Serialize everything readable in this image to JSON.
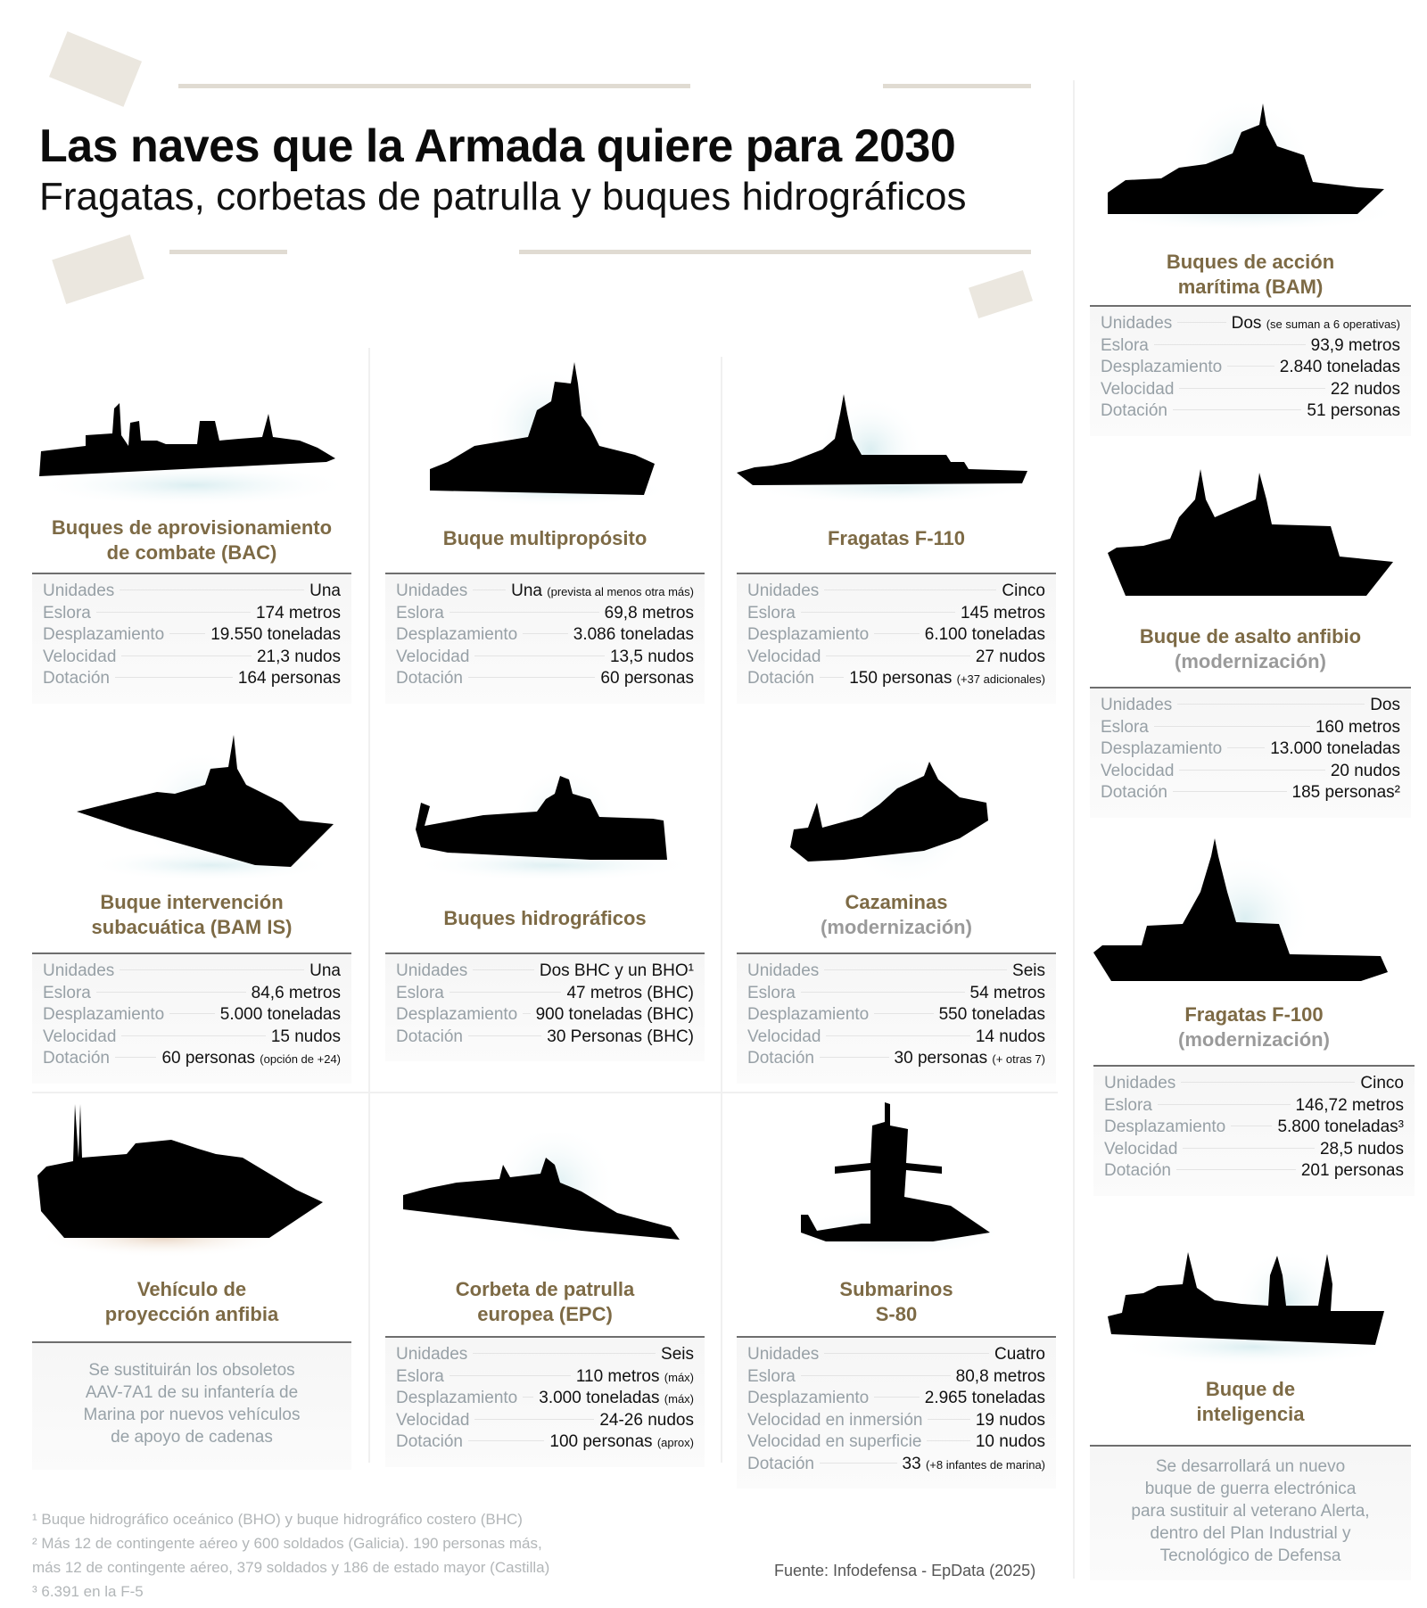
{
  "header": {
    "title": "Las naves que la Armada quiere para 2030",
    "subtitle": "Fragatas, corbetas de patrulla y buques hidrográficos"
  },
  "colors": {
    "name_accent": "#7d6a45",
    "label_gray": "#97a0a6",
    "silhouette": "#000000",
    "water_glow": "#cfe6ea",
    "deco_beige": "#ebe7df"
  },
  "cards": {
    "bac": {
      "name": "Buques de aprovisionamiento de combate (BAC)",
      "name_l1": "Buques de aprovisionamiento",
      "name_l2": "de combate (BAC)",
      "stats": [
        {
          "label": "Unidades",
          "value": "Una",
          "note": ""
        },
        {
          "label": "Eslora",
          "value": "174 metros",
          "note": ""
        },
        {
          "label": "Desplazamiento",
          "value": "19.550 toneladas",
          "note": ""
        },
        {
          "label": "Velocidad",
          "value": "21,3 nudos",
          "note": ""
        },
        {
          "label": "Dotación",
          "value": "164 personas",
          "note": ""
        }
      ]
    },
    "multi": {
      "name": "Buque multipropósito",
      "stats": [
        {
          "label": "Unidades",
          "value": "Una",
          "note": "(prevista al menos otra más)"
        },
        {
          "label": "Eslora",
          "value": "69,8 metros",
          "note": ""
        },
        {
          "label": "Desplazamiento",
          "value": "3.086 toneladas",
          "note": ""
        },
        {
          "label": "Velocidad",
          "value": "13,5 nudos",
          "note": ""
        },
        {
          "label": "Dotación",
          "value": "60 personas",
          "note": ""
        }
      ]
    },
    "f110": {
      "name": "Fragatas F-110",
      "stats": [
        {
          "label": "Unidades",
          "value": "Cinco",
          "note": ""
        },
        {
          "label": "Eslora",
          "value": "145 metros",
          "note": ""
        },
        {
          "label": "Desplazamiento",
          "value": "6.100 toneladas",
          "note": ""
        },
        {
          "label": "Velocidad",
          "value": "27 nudos",
          "note": ""
        },
        {
          "label": "Dotación",
          "value": "150 personas",
          "note": "(+37 adicionales)"
        }
      ]
    },
    "bam": {
      "name_l1": "Buques de acción",
      "name_l2": "marítima (BAM)",
      "stats": [
        {
          "label": "Unidades",
          "value": "Dos",
          "note": "(se suman a 6 operativas)"
        },
        {
          "label": "Eslora",
          "value": "93,9 metros",
          "note": ""
        },
        {
          "label": "Desplazamiento",
          "value": "2.840 toneladas",
          "note": ""
        },
        {
          "label": "Velocidad",
          "value": "22 nudos",
          "note": ""
        },
        {
          "label": "Dotación",
          "value": "51 personas",
          "note": ""
        }
      ]
    },
    "bamis": {
      "name_l1": "Buque intervención",
      "name_l2": "subacuática (BAM IS)",
      "stats": [
        {
          "label": "Unidades",
          "value": "Una",
          "note": ""
        },
        {
          "label": "Eslora",
          "value": "84,6 metros",
          "note": ""
        },
        {
          "label": "Desplazamiento",
          "value": "5.000 toneladas",
          "note": ""
        },
        {
          "label": "Velocidad",
          "value": "15 nudos",
          "note": ""
        },
        {
          "label": "Dotación",
          "value": "60 personas",
          "note": "(opción de +24)"
        }
      ]
    },
    "hidro": {
      "name": "Buques hidrográficos",
      "stats": [
        {
          "label": "Unidades",
          "value": "Dos BHC y un BHO¹",
          "note": ""
        },
        {
          "label": "Eslora",
          "value": "47 metros (BHC)",
          "note": ""
        },
        {
          "label": "Desplazamiento",
          "value": "900 toneladas (BHC)",
          "note": ""
        },
        {
          "label": "Dotación",
          "value": "30 Personas (BHC)",
          "note": ""
        }
      ]
    },
    "cazaminas": {
      "name_l1": "Cazaminas",
      "name_l2": "(modernización)",
      "stats": [
        {
          "label": "Unidades",
          "value": "Seis",
          "note": ""
        },
        {
          "label": "Eslora",
          "value": "54 metros",
          "note": ""
        },
        {
          "label": "Desplazamiento",
          "value": "550 toneladas",
          "note": ""
        },
        {
          "label": "Velocidad",
          "value": "14 nudos",
          "note": ""
        },
        {
          "label": "Dotación",
          "value": "30 personas",
          "note": "(+ otras 7)"
        }
      ]
    },
    "asalto": {
      "name_l1": "Buque de asalto anfibio",
      "name_l2": "(modernización)",
      "stats": [
        {
          "label": "Unidades",
          "value": "Dos",
          "note": ""
        },
        {
          "label": "Eslora",
          "value": "160 metros",
          "note": ""
        },
        {
          "label": "Desplazamiento",
          "value": "13.000 toneladas",
          "note": ""
        },
        {
          "label": "Velocidad",
          "value": "20 nudos",
          "note": ""
        },
        {
          "label": "Dotación",
          "value": "185 personas²",
          "note": ""
        }
      ]
    },
    "f100": {
      "name_l1": "Fragatas F-100",
      "name_l2": "(modernización)",
      "stats": [
        {
          "label": "Unidades",
          "value": "Cinco",
          "note": ""
        },
        {
          "label": "Eslora",
          "value": "146,72 metros",
          "note": ""
        },
        {
          "label": "Desplazamiento",
          "value": "5.800 toneladas³",
          "note": ""
        },
        {
          "label": "Velocidad",
          "value": "28,5 nudos",
          "note": ""
        },
        {
          "label": "Dotación",
          "value": "201 personas",
          "note": ""
        }
      ]
    },
    "vehiculo": {
      "name_l1": "Vehículo de",
      "name_l2": "proyección anfibia",
      "description": [
        "Se sustituirán los obsoletos",
        "AAV-7A1 de su infantería de",
        "Marina por nuevos vehículos",
        "de apoyo de cadenas"
      ]
    },
    "epc": {
      "name_l1": "Corbeta de patrulla",
      "name_l2": "europea (EPC)",
      "stats": [
        {
          "label": "Unidades",
          "value": "Seis",
          "note": ""
        },
        {
          "label": "Eslora",
          "value": "110 metros",
          "note": "(máx)"
        },
        {
          "label": "Desplazamiento",
          "value": "3.000 toneladas",
          "note": "(máx)"
        },
        {
          "label": "Velocidad",
          "value": "24-26 nudos",
          "note": ""
        },
        {
          "label": "Dotación",
          "value": "100 personas",
          "note": "(aprox)"
        }
      ]
    },
    "s80": {
      "name_l1": "Submarinos",
      "name_l2": "S-80",
      "stats": [
        {
          "label": "Unidades",
          "value": "Cuatro",
          "note": ""
        },
        {
          "label": "Eslora",
          "value": "80,8 metros",
          "note": ""
        },
        {
          "label": "Desplazamiento",
          "value": "2.965 toneladas",
          "note": ""
        },
        {
          "label": "Velocidad en inmersión",
          "value": "19 nudos",
          "note": ""
        },
        {
          "label": "Velocidad en superficie",
          "value": "10 nudos",
          "note": ""
        },
        {
          "label": "Dotación",
          "value": "33",
          "note": "(+8 infantes de marina)"
        }
      ]
    },
    "inteligencia": {
      "name_l1": "Buque de",
      "name_l2": "inteligencia",
      "description": [
        "Se desarrollará un nuevo",
        "buque de guerra electrónica",
        "para sustituir al veterano Alerta,",
        "dentro del Plan Industrial y",
        "Tecnológico de Defensa"
      ]
    }
  },
  "footnotes": [
    "¹ Buque hidrográfico oceánico (BHO) y buque hidrográfico costero (BHC)",
    "² Más 12 de contingente aéreo y 600 soldados (Galicia). 190 personas más,",
    "más 12 de contingente aéreo, 379 soldados y 186 de estado mayor (Castilla)",
    "³ 6.391 en la F-5"
  ],
  "source": "Fuente: Infodefensa - EpData (2025)"
}
